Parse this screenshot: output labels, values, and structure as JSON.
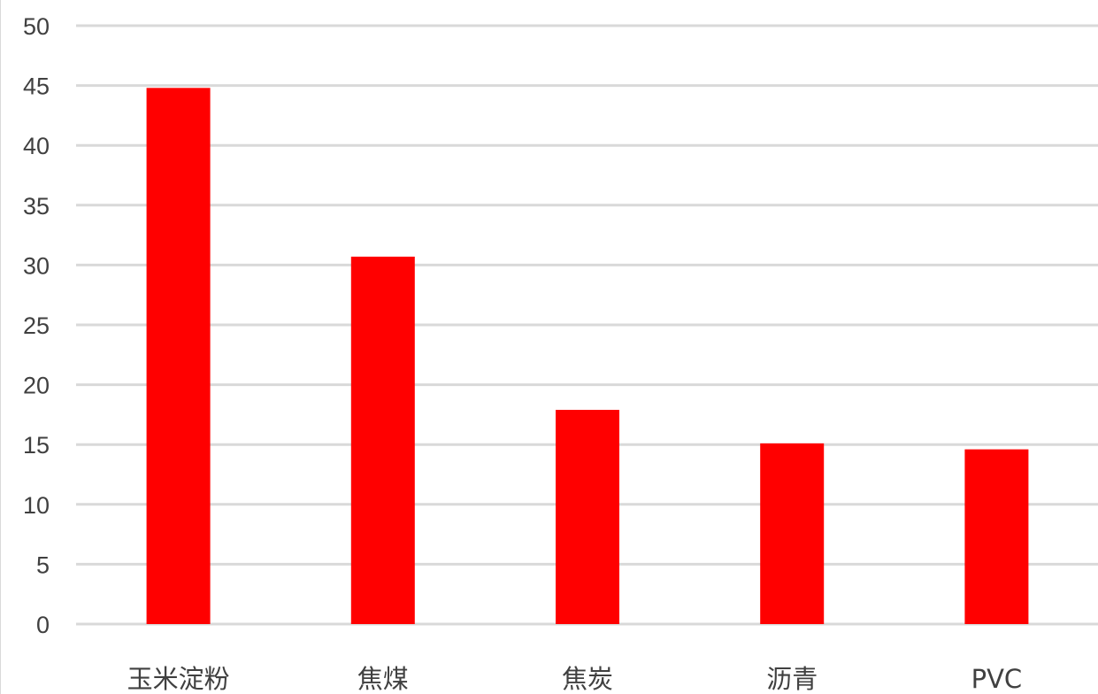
{
  "chart_data": {
    "type": "bar",
    "title": "",
    "xlabel": "",
    "ylabel": "",
    "categories": [
      "玉米淀粉",
      "焦煤",
      "焦炭",
      "沥青",
      "PVC"
    ],
    "values": [
      44.8,
      30.7,
      17.9,
      15.1,
      14.6
    ],
    "ylim": [
      0,
      50
    ],
    "yticks": [
      0,
      5,
      10,
      15,
      20,
      25,
      30,
      35,
      40,
      45,
      50
    ],
    "ytick_labels": [
      "0",
      "5",
      "10",
      "15",
      "20",
      "25",
      "30",
      "35",
      "40",
      "45",
      "50"
    ],
    "grid": true,
    "legend": "none",
    "bar_color": "#ff0000",
    "grid_color": "#d9d9d9"
  }
}
